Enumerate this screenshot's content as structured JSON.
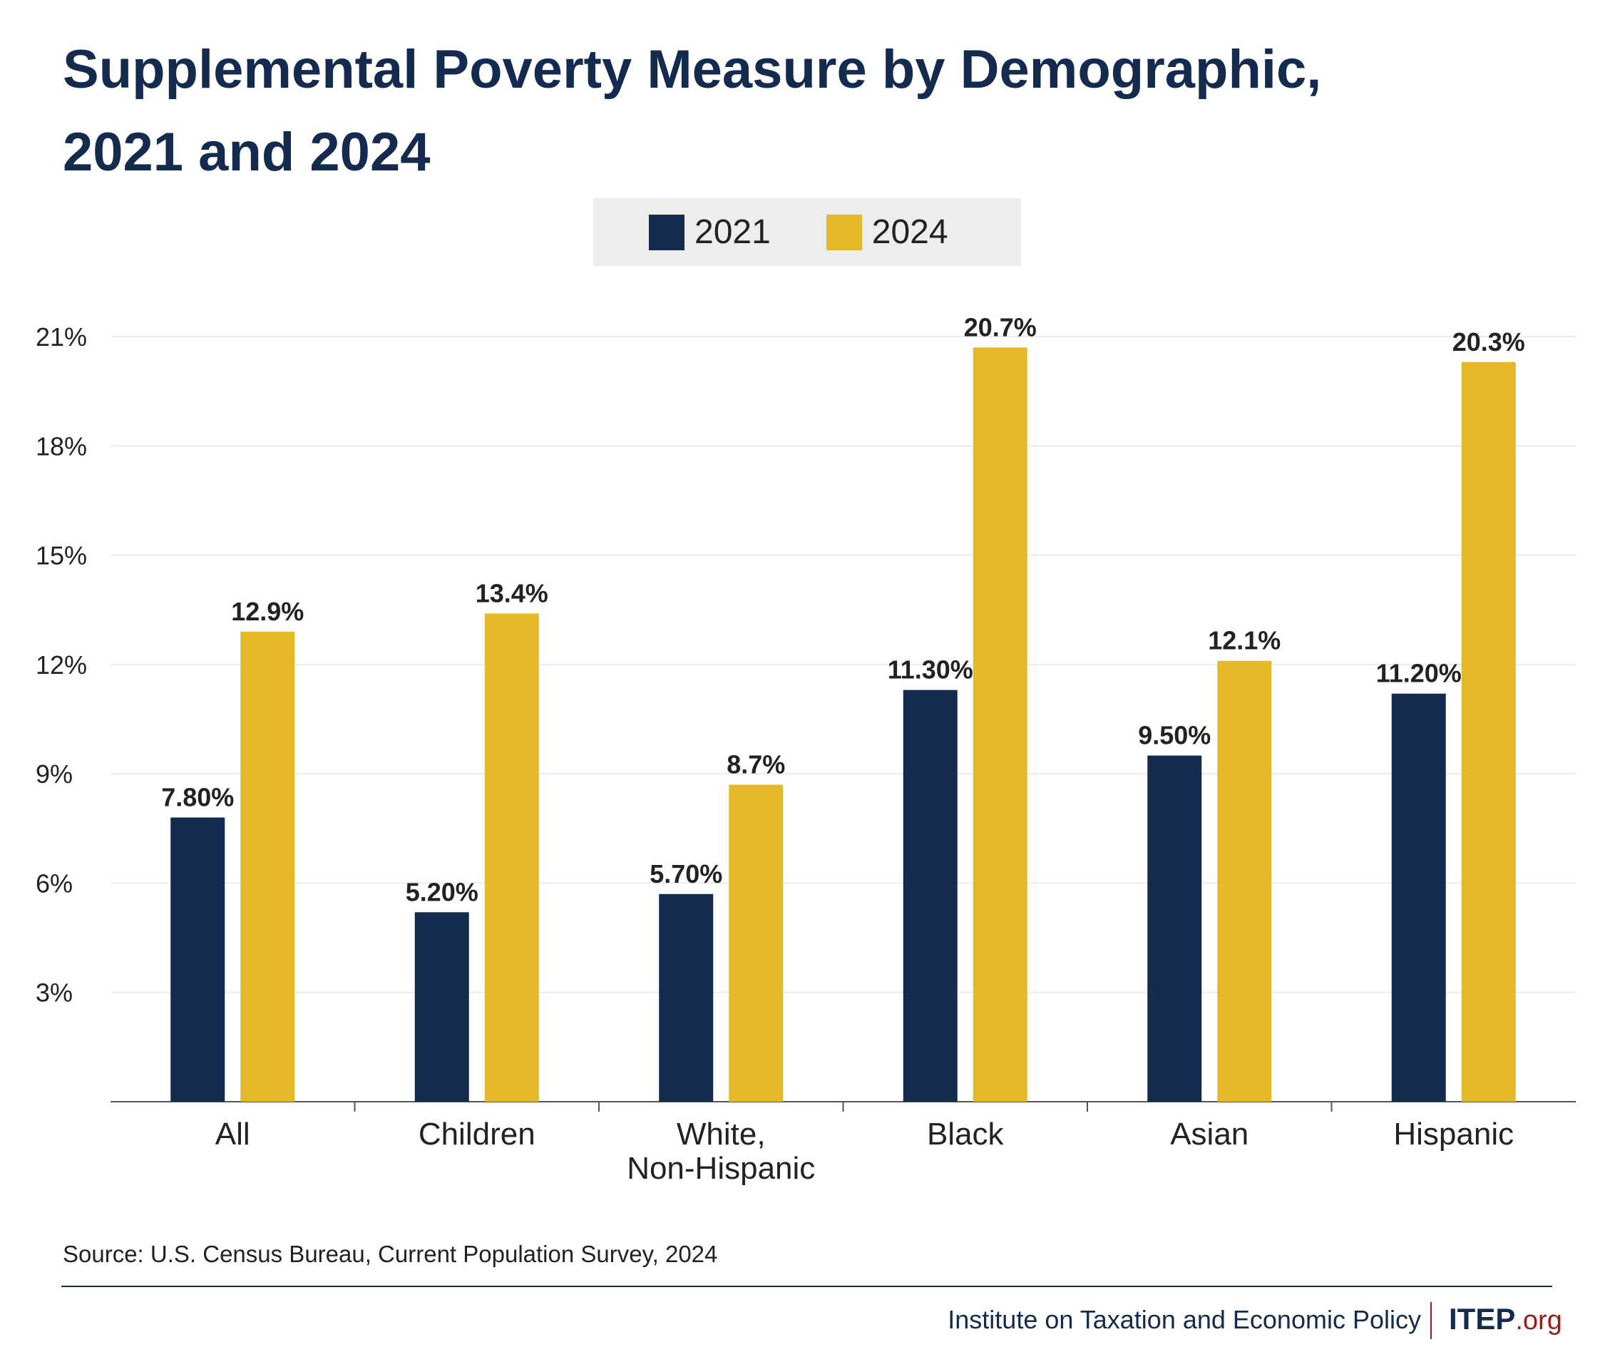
{
  "title_line1": "Supplemental Poverty Measure by Demographic,",
  "title_line2": "2021 and 2024",
  "colors": {
    "series_2021": "#142a4e",
    "series_2024": "#e3b829",
    "text": "#142a4e",
    "accent": "#9b1b1b"
  },
  "chart_data": {
    "type": "bar",
    "title": "Supplemental Poverty Measure by Demographic, 2021 and 2024",
    "categories": [
      [
        "All"
      ],
      [
        "Children"
      ],
      [
        "White,",
        "Non-Hispanic"
      ],
      [
        "Black"
      ],
      [
        "Asian"
      ],
      [
        "Hispanic"
      ]
    ],
    "series": [
      {
        "name": "2021",
        "values": [
          7.8,
          5.2,
          5.7,
          11.3,
          9.5,
          11.2
        ],
        "labels": [
          "7.80%",
          "5.20%",
          "5.70%",
          "11.30%",
          "9.50%",
          "11.20%"
        ]
      },
      {
        "name": "2024",
        "values": [
          12.9,
          13.4,
          8.7,
          20.7,
          12.1,
          20.3
        ],
        "labels": [
          "12.9%",
          "13.4%",
          "8.7%",
          "20.7%",
          "12.1%",
          "20.3%"
        ]
      }
    ],
    "yticks": [
      "3%",
      "6%",
      "9%",
      "12%",
      "15%",
      "18%",
      "21%"
    ],
    "ytick_values": [
      3,
      6,
      9,
      12,
      15,
      18,
      21
    ],
    "ylim": [
      0,
      21
    ],
    "grid": true,
    "legend": "top-center"
  },
  "source": "Source: U.S. Census Bureau, Current Population Survey, 2024",
  "footer": {
    "org": "Institute on Taxation and Economic Policy",
    "logo_main": "ITEP",
    "logo_tld": ".org"
  }
}
